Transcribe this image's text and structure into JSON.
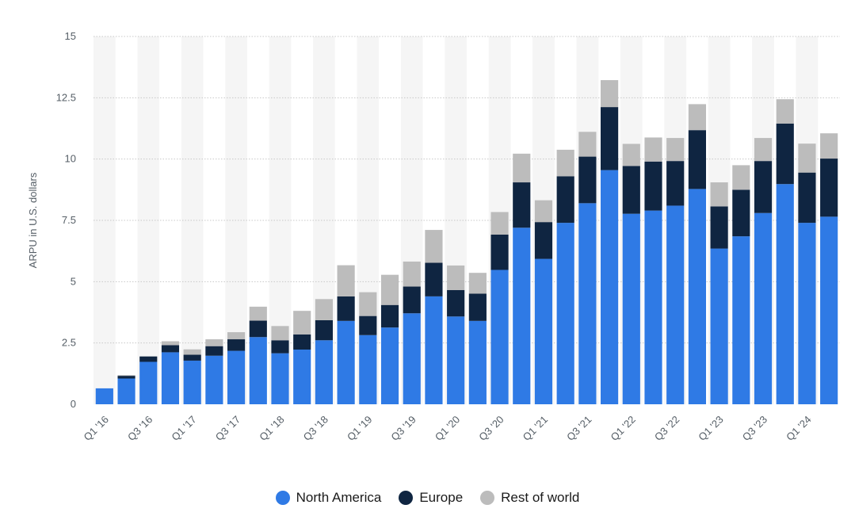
{
  "chart_data": {
    "type": "bar",
    "stacked": true,
    "ylabel": "ARPU in U.S. dollars",
    "ylim": [
      0,
      15
    ],
    "yticks": [
      0,
      2.5,
      5,
      7.5,
      10,
      12.5,
      15
    ],
    "ytick_labels": [
      "0",
      "2.5",
      "5",
      "7.5",
      "10",
      "12.5",
      "15"
    ],
    "grid": true,
    "categories": [
      "Q1 '16",
      "Q2 '16",
      "Q3 '16",
      "Q4 '16",
      "Q1 '17",
      "Q2 '17",
      "Q3 '17",
      "Q4 '17",
      "Q1 '18",
      "Q2 '18",
      "Q3 '18",
      "Q4 '18",
      "Q1 '19",
      "Q2 '19",
      "Q3 '19",
      "Q4 '19",
      "Q1 '20",
      "Q2 '20",
      "Q3 '20",
      "Q4 '20",
      "Q1 '21",
      "Q2 '21",
      "Q3 '21",
      "Q4 '21",
      "Q1 '22",
      "Q2 '22",
      "Q3 '22",
      "Q4 '22",
      "Q1 '23",
      "Q2 '23",
      "Q3 '23",
      "Q4 '23",
      "Q1 '24",
      "Q2 '24"
    ],
    "xtick_labels": [
      "Q1 '16",
      "",
      "Q3 '16",
      "",
      "Q1 '17",
      "",
      "Q3 '17",
      "",
      "Q1 '18",
      "",
      "Q3 '18",
      "",
      "Q1 '19",
      "",
      "Q3 '19",
      "",
      "Q1 '20",
      "",
      "Q3 '20",
      "",
      "Q1 '21",
      "",
      "Q3 '21",
      "",
      "Q1 '22",
      "",
      "Q3 '22",
      "",
      "Q1 '23",
      "",
      "Q3 '23",
      "",
      "Q1 '24",
      ""
    ],
    "series": [
      {
        "name": "North America",
        "color": "#2f7ae5",
        "values": [
          0.65,
          1.05,
          1.73,
          2.12,
          1.78,
          1.98,
          2.18,
          2.74,
          2.08,
          2.23,
          2.61,
          3.4,
          2.82,
          3.13,
          3.71,
          4.4,
          3.58,
          3.4,
          5.48,
          7.2,
          5.93,
          7.4,
          8.2,
          9.55,
          7.77,
          7.9,
          8.1,
          8.78,
          6.35,
          6.85,
          7.8,
          8.98,
          7.4,
          7.65
        ]
      },
      {
        "name": "Europe",
        "color": "#0f2541",
        "values": [
          0.0,
          0.11,
          0.22,
          0.29,
          0.24,
          0.39,
          0.47,
          0.67,
          0.53,
          0.62,
          0.82,
          1.0,
          0.78,
          0.92,
          1.09,
          1.37,
          1.08,
          1.11,
          1.44,
          1.85,
          1.5,
          1.9,
          1.9,
          2.57,
          1.95,
          2.0,
          1.82,
          2.4,
          1.72,
          1.9,
          2.12,
          2.47,
          2.05,
          2.37
        ]
      },
      {
        "name": "Rest of world",
        "color": "#bcbcbc",
        "values": [
          0.0,
          0.03,
          0.0,
          0.16,
          0.22,
          0.28,
          0.29,
          0.57,
          0.58,
          0.96,
          0.86,
          1.27,
          0.97,
          1.23,
          1.02,
          1.34,
          1.0,
          0.85,
          0.92,
          1.17,
          0.89,
          1.08,
          1.01,
          1.1,
          0.9,
          0.98,
          0.94,
          1.06,
          0.98,
          1.0,
          0.94,
          0.99,
          1.18,
          1.03
        ]
      }
    ]
  },
  "legend": {
    "items": [
      {
        "label": "North America",
        "color": "#2f7ae5"
      },
      {
        "label": "Europe",
        "color": "#0f2541"
      },
      {
        "label": "Rest of world",
        "color": "#bcbcbc"
      }
    ]
  }
}
